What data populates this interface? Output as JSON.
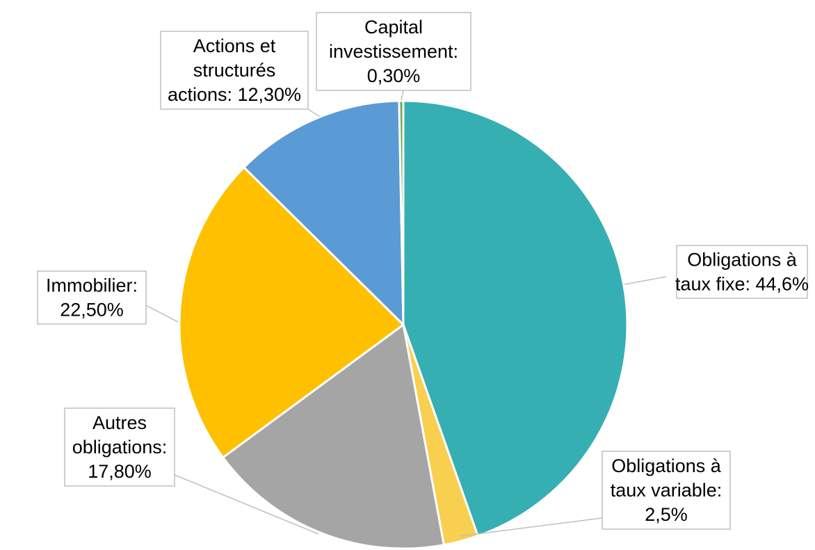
{
  "chart_data": {
    "type": "pie",
    "start_angle_deg": 0,
    "direction": "clockwise",
    "slices": [
      {
        "name": "Obligations à taux fixe",
        "value": 44.6,
        "color": "#36AFB3",
        "label_lines": [
          "Obligations à",
          "taux fixe: 44,6%"
        ]
      },
      {
        "name": "Obligations à taux variable",
        "value": 2.5,
        "color": "#F8CF4F",
        "label_lines": [
          "Obligations à",
          "taux variable:",
          "2,5%"
        ]
      },
      {
        "name": "Autres obligations",
        "value": 17.8,
        "color": "#A5A5A5",
        "label_lines": [
          "Autres",
          "obligations:",
          "17,80%"
        ]
      },
      {
        "name": "Immobilier",
        "value": 22.5,
        "color": "#FFC000",
        "label_lines": [
          "Immobilier:",
          "22,50%"
        ]
      },
      {
        "name": "Actions et structurés actions",
        "value": 12.3,
        "color": "#5B9BD5",
        "label_lines": [
          "Actions et",
          "structurés",
          "actions: 12,30%"
        ]
      },
      {
        "name": "Capital investissement",
        "value": 0.3,
        "color": "#70AD47",
        "label_lines": [
          "Capital",
          "investissement:",
          "0,30%"
        ]
      }
    ]
  }
}
